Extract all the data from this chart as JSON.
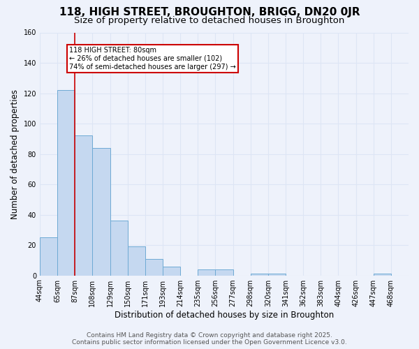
{
  "title1": "118, HIGH STREET, BROUGHTON, BRIGG, DN20 0JR",
  "title2": "Size of property relative to detached houses in Broughton",
  "xlabel": "Distribution of detached houses by size in Broughton",
  "ylabel": "Number of detached properties",
  "categories": [
    "44sqm",
    "65sqm",
    "87sqm",
    "108sqm",
    "129sqm",
    "150sqm",
    "171sqm",
    "193sqm",
    "214sqm",
    "235sqm",
    "256sqm",
    "277sqm",
    "298sqm",
    "320sqm",
    "341sqm",
    "362sqm",
    "383sqm",
    "404sqm",
    "426sqm",
    "447sqm",
    "468sqm"
  ],
  "values": [
    25,
    122,
    92,
    84,
    36,
    19,
    11,
    6,
    0,
    4,
    4,
    0,
    1,
    1,
    0,
    0,
    0,
    0,
    0,
    1,
    0
  ],
  "bar_color": "#c5d8f0",
  "bar_edge_color": "#6eaad4",
  "red_line_x": 2,
  "annotation_text": "118 HIGH STREET: 80sqm\n← 26% of detached houses are smaller (102)\n74% of semi-detached houses are larger (297) →",
  "annotation_box_color": "#ffffff",
  "annotation_box_edge": "#cc0000",
  "footer_text": "Contains HM Land Registry data © Crown copyright and database right 2025.\nContains public sector information licensed under the Open Government Licence v3.0.",
  "ylim": [
    0,
    160
  ],
  "background_color": "#eef2fb",
  "grid_color": "#dde5f5",
  "title1_fontsize": 11,
  "title2_fontsize": 9.5,
  "xlabel_fontsize": 8.5,
  "ylabel_fontsize": 8.5,
  "tick_fontsize": 7,
  "footer_fontsize": 6.5
}
